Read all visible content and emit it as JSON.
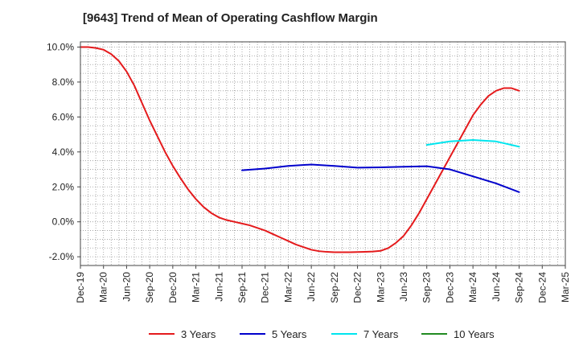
{
  "chart_data": {
    "type": "line",
    "title": "[9643]  Trend of Mean of Operating Cashflow Margin",
    "xlabel": "",
    "ylabel": "",
    "x_ticks": [
      "Dec-19",
      "Mar-20",
      "Jun-20",
      "Sep-20",
      "Dec-20",
      "Mar-21",
      "Jun-21",
      "Sep-21",
      "Dec-21",
      "Mar-22",
      "Jun-22",
      "Sep-22",
      "Dec-22",
      "Mar-23",
      "Jun-23",
      "Sep-23",
      "Dec-23",
      "Mar-24",
      "Jun-24",
      "Sep-24",
      "Dec-24",
      "Mar-25"
    ],
    "y_ticks": [
      "10.0%",
      "8.0%",
      "6.0%",
      "4.0%",
      "2.0%",
      "0.0%",
      "-2.0%"
    ],
    "y_tick_values": [
      10,
      8,
      6,
      4,
      2,
      0,
      -2
    ],
    "ylim": [
      -2.5,
      10.3
    ],
    "grid": true,
    "legend_position": "bottom",
    "series": [
      {
        "name": "3 Years",
        "color": "#e41a1c",
        "x": [
          "2019-12",
          "2020-01",
          "2020-02",
          "2020-03",
          "2020-04",
          "2020-05",
          "2020-06",
          "2020-07",
          "2020-08",
          "2020-09",
          "2020-10",
          "2020-11",
          "2020-12",
          "2021-01",
          "2021-02",
          "2021-03",
          "2021-04",
          "2021-05",
          "2021-06",
          "2021-07",
          "2021-08",
          "2021-09",
          "2021-10",
          "2021-11",
          "2021-12",
          "2022-01",
          "2022-02",
          "2022-03",
          "2022-04",
          "2022-05",
          "2022-06",
          "2022-07",
          "2022-08",
          "2022-09",
          "2022-10",
          "2022-11",
          "2022-12",
          "2023-01",
          "2023-02",
          "2023-03",
          "2023-04",
          "2023-05",
          "2023-06",
          "2023-07",
          "2023-08",
          "2023-09",
          "2023-10",
          "2023-11",
          "2023-12",
          "2024-01",
          "2024-02",
          "2024-03",
          "2024-04",
          "2024-05",
          "2024-06",
          "2024-07",
          "2024-08",
          "2024-09"
        ],
        "values": [
          10.0,
          10.0,
          9.95,
          9.85,
          9.6,
          9.2,
          8.6,
          7.8,
          6.8,
          5.8,
          4.9,
          4.0,
          3.2,
          2.5,
          1.85,
          1.3,
          0.85,
          0.5,
          0.25,
          0.1,
          0.0,
          -0.1,
          -0.2,
          -0.35,
          -0.5,
          -0.7,
          -0.9,
          -1.1,
          -1.3,
          -1.45,
          -1.6,
          -1.68,
          -1.72,
          -1.74,
          -1.74,
          -1.74,
          -1.73,
          -1.72,
          -1.7,
          -1.66,
          -1.5,
          -1.2,
          -0.8,
          -0.2,
          0.5,
          1.3,
          2.1,
          2.9,
          3.7,
          4.5,
          5.3,
          6.1,
          6.7,
          7.2,
          7.5,
          7.65,
          7.65,
          7.5
        ]
      },
      {
        "name": "5 Years",
        "color": "#0000cc",
        "x": [
          "2021-09",
          "2021-12",
          "2022-03",
          "2022-06",
          "2022-09",
          "2022-12",
          "2023-03",
          "2023-06",
          "2023-09",
          "2023-12",
          "2024-03",
          "2024-06",
          "2024-09"
        ],
        "values": [
          2.95,
          3.05,
          3.2,
          3.28,
          3.2,
          3.1,
          3.12,
          3.15,
          3.18,
          3.0,
          2.6,
          2.2,
          1.7
        ]
      },
      {
        "name": "7 Years",
        "color": "#00e5ee",
        "x": [
          "2023-09",
          "2023-12",
          "2024-03",
          "2024-06",
          "2024-09"
        ],
        "values": [
          4.4,
          4.6,
          4.68,
          4.6,
          4.3
        ]
      },
      {
        "name": "10 Years",
        "color": "#228b22",
        "x": [],
        "values": []
      }
    ]
  }
}
